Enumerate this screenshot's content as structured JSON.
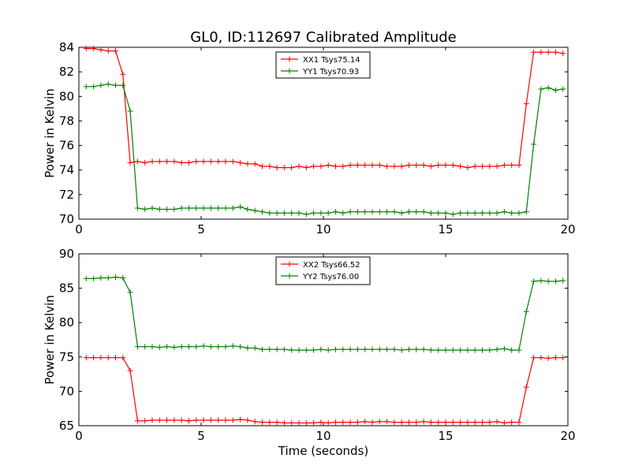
{
  "chart_data": [
    {
      "type": "line",
      "title": "GL0, ID:112697 Calibrated Amplitude",
      "xlabel": "",
      "ylabel": "Power in Kelvin",
      "xlim": [
        0,
        20
      ],
      "ylim": [
        70,
        84
      ],
      "xticks": [
        0,
        5,
        10,
        15,
        20
      ],
      "yticks": [
        70,
        72,
        74,
        76,
        78,
        80,
        82,
        84
      ],
      "grid": false,
      "legend": "top-center",
      "x": [
        0.3,
        0.6,
        0.9,
        1.2,
        1.5,
        1.8,
        2.1,
        2.4,
        2.7,
        3.0,
        3.3,
        3.6,
        3.9,
        4.2,
        4.5,
        4.8,
        5.1,
        5.4,
        5.7,
        6.0,
        6.3,
        6.6,
        6.9,
        7.2,
        7.5,
        7.8,
        8.1,
        8.4,
        8.7,
        9.0,
        9.3,
        9.6,
        9.9,
        10.2,
        10.5,
        10.8,
        11.1,
        11.4,
        11.7,
        12.0,
        12.3,
        12.6,
        12.9,
        13.2,
        13.5,
        13.8,
        14.1,
        14.4,
        14.7,
        15.0,
        15.3,
        15.6,
        15.9,
        16.2,
        16.5,
        16.8,
        17.1,
        17.4,
        17.7,
        18.0,
        18.3,
        18.6,
        18.9,
        19.2,
        19.5,
        19.8
      ],
      "series": [
        {
          "name": "XX1 Tsys75.14",
          "color": "#ff0000",
          "values": [
            83.9,
            83.9,
            83.8,
            83.7,
            83.7,
            81.8,
            74.6,
            74.7,
            74.6,
            74.7,
            74.7,
            74.7,
            74.7,
            74.6,
            74.6,
            74.7,
            74.7,
            74.7,
            74.7,
            74.7,
            74.7,
            74.6,
            74.5,
            74.5,
            74.3,
            74.3,
            74.2,
            74.2,
            74.2,
            74.3,
            74.2,
            74.3,
            74.3,
            74.4,
            74.3,
            74.3,
            74.4,
            74.4,
            74.4,
            74.4,
            74.4,
            74.3,
            74.3,
            74.3,
            74.4,
            74.4,
            74.4,
            74.3,
            74.4,
            74.4,
            74.4,
            74.3,
            74.2,
            74.3,
            74.3,
            74.3,
            74.3,
            74.4,
            74.4,
            74.4,
            79.4,
            83.6,
            83.6,
            83.6,
            83.6,
            83.5
          ]
        },
        {
          "name": "YY1 Tsys70.93",
          "color": "#008000",
          "values": [
            80.8,
            80.8,
            80.9,
            81.0,
            80.9,
            80.9,
            78.8,
            70.9,
            70.8,
            70.9,
            70.8,
            70.8,
            70.8,
            70.9,
            70.9,
            70.9,
            70.9,
            70.9,
            70.9,
            70.9,
            70.9,
            71.0,
            70.8,
            70.7,
            70.6,
            70.5,
            70.5,
            70.5,
            70.5,
            70.5,
            70.4,
            70.5,
            70.5,
            70.5,
            70.6,
            70.5,
            70.6,
            70.6,
            70.6,
            70.6,
            70.6,
            70.6,
            70.6,
            70.5,
            70.6,
            70.6,
            70.6,
            70.5,
            70.5,
            70.5,
            70.4,
            70.5,
            70.5,
            70.5,
            70.5,
            70.5,
            70.5,
            70.6,
            70.5,
            70.5,
            70.6,
            76.1,
            80.6,
            80.7,
            80.5,
            80.6
          ]
        }
      ]
    },
    {
      "type": "line",
      "title": "",
      "xlabel": "Time (seconds)",
      "ylabel": "Power in Kelvin",
      "xlim": [
        0,
        20
      ],
      "ylim": [
        65,
        90
      ],
      "xticks": [
        0,
        5,
        10,
        15,
        20
      ],
      "yticks": [
        65,
        70,
        75,
        80,
        85,
        90
      ],
      "grid": false,
      "legend": "top-center",
      "x": [
        0.3,
        0.6,
        0.9,
        1.2,
        1.5,
        1.8,
        2.1,
        2.4,
        2.7,
        3.0,
        3.3,
        3.6,
        3.9,
        4.2,
        4.5,
        4.8,
        5.1,
        5.4,
        5.7,
        6.0,
        6.3,
        6.6,
        6.9,
        7.2,
        7.5,
        7.8,
        8.1,
        8.4,
        8.7,
        9.0,
        9.3,
        9.6,
        9.9,
        10.2,
        10.5,
        10.8,
        11.1,
        11.4,
        11.7,
        12.0,
        12.3,
        12.6,
        12.9,
        13.2,
        13.5,
        13.8,
        14.1,
        14.4,
        14.7,
        15.0,
        15.3,
        15.6,
        15.9,
        16.2,
        16.5,
        16.8,
        17.1,
        17.4,
        17.7,
        18.0,
        18.3,
        18.6,
        18.9,
        19.2,
        19.5,
        19.8
      ],
      "series": [
        {
          "name": "XX2 Tsys66.52",
          "color": "#ff0000",
          "values": [
            74.9,
            74.9,
            74.9,
            74.9,
            74.9,
            74.9,
            73.0,
            65.7,
            65.7,
            65.8,
            65.8,
            65.8,
            65.8,
            65.8,
            65.7,
            65.8,
            65.8,
            65.8,
            65.8,
            65.8,
            65.8,
            65.9,
            65.8,
            65.6,
            65.5,
            65.5,
            65.5,
            65.4,
            65.4,
            65.4,
            65.4,
            65.4,
            65.5,
            65.4,
            65.5,
            65.5,
            65.5,
            65.5,
            65.6,
            65.5,
            65.6,
            65.6,
            65.5,
            65.5,
            65.5,
            65.5,
            65.6,
            65.5,
            65.5,
            65.5,
            65.5,
            65.5,
            65.5,
            65.5,
            65.5,
            65.5,
            65.6,
            65.4,
            65.5,
            65.5,
            70.6,
            74.9,
            74.9,
            74.8,
            74.9,
            74.9
          ]
        },
        {
          "name": "YY2 Tsys76.00",
          "color": "#008000",
          "values": [
            86.4,
            86.4,
            86.5,
            86.5,
            86.6,
            86.5,
            84.4,
            76.5,
            76.5,
            76.5,
            76.4,
            76.5,
            76.4,
            76.5,
            76.5,
            76.5,
            76.6,
            76.5,
            76.5,
            76.5,
            76.6,
            76.5,
            76.3,
            76.3,
            76.1,
            76.1,
            76.1,
            76.1,
            76.0,
            76.0,
            76.0,
            76.0,
            76.1,
            76.0,
            76.1,
            76.1,
            76.1,
            76.1,
            76.1,
            76.1,
            76.1,
            76.1,
            76.1,
            76.0,
            76.1,
            76.1,
            76.1,
            76.0,
            76.0,
            76.0,
            76.0,
            76.0,
            76.0,
            76.0,
            76.0,
            76.0,
            76.1,
            76.2,
            76.0,
            76.0,
            81.6,
            86.0,
            86.1,
            86.0,
            86.0,
            86.1
          ]
        }
      ]
    }
  ]
}
